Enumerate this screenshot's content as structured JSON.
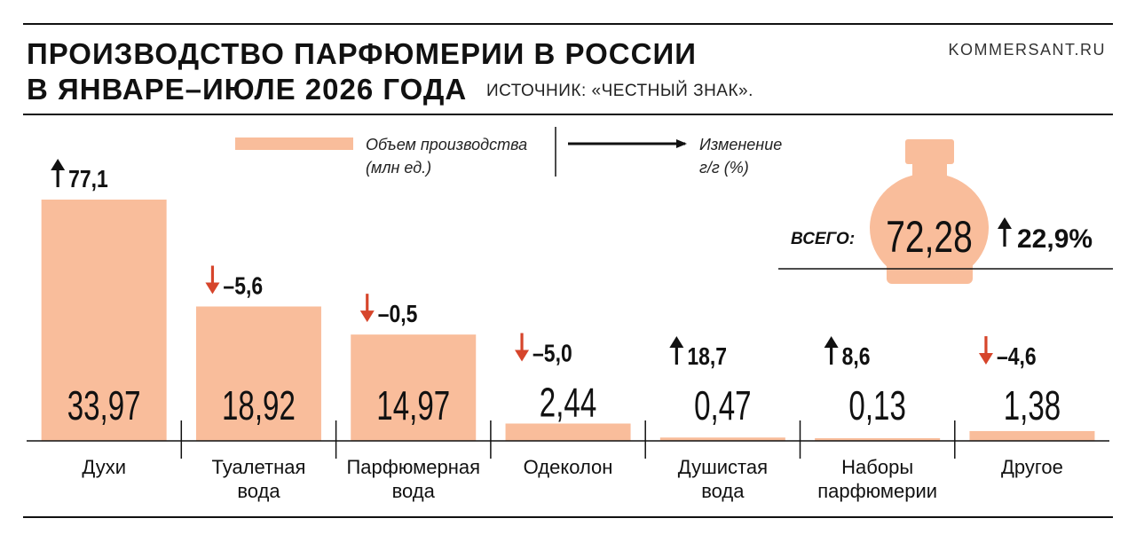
{
  "header": {
    "title_line1": "ПРОИЗВОДСТВО ПАРФЮМЕРИИ В РОССИИ",
    "title_line2": "В ЯНВАРЕ–ИЮЛЕ 2026 ГОДА",
    "source": "ИСТОЧНИК: «ЧЕСТНЫЙ ЗНАК».",
    "site": "KOMMERSANT.RU"
  },
  "legend": {
    "volume_line1": "Объем производства",
    "volume_line2": "(млн ед.)",
    "change_line1": "Изменение",
    "change_line2": "г/г (%)"
  },
  "total": {
    "label": "ВСЕГО:",
    "value": "72,28",
    "change": "22,9%"
  },
  "colors": {
    "bar": "#f9bd9b",
    "up_arrow": "#111111",
    "down_arrow": "#d6452b"
  },
  "chart_data": {
    "type": "bar",
    "unit": "млн ед.",
    "categories": [
      [
        "Духи"
      ],
      [
        "Туалетная",
        "вода"
      ],
      [
        "Парфюмерная",
        "вода"
      ],
      [
        "Одеколон"
      ],
      [
        "Душистая",
        "вода"
      ],
      [
        "Наборы",
        "парфюмерии"
      ],
      [
        "Другое"
      ]
    ],
    "values": [
      33.97,
      18.92,
      14.97,
      2.44,
      0.47,
      0.13,
      1.38
    ],
    "value_labels": [
      "33,97",
      "18,92",
      "14,97",
      "2,44",
      "0,47",
      "0,13",
      "1,38"
    ],
    "changes": [
      77.1,
      -5.6,
      -0.5,
      -5.0,
      18.7,
      8.6,
      -4.6
    ],
    "change_labels": [
      "77,1",
      "–5,6",
      "–0,5",
      "–5,0",
      "18,7",
      "8,6",
      "–4,6"
    ],
    "ylim": [
      0,
      33.97
    ]
  }
}
